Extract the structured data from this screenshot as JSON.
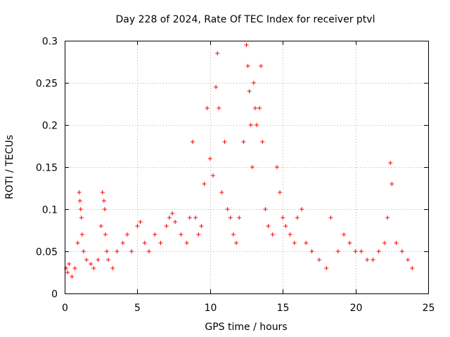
{
  "chart_data": {
    "type": "scatter",
    "title": "Day 228 of 2024, Rate Of TEC Index for receiver ptvl",
    "xlabel": "GPS time / hours",
    "ylabel": "ROTI / TECUs",
    "xlim": [
      0,
      25
    ],
    "ylim": [
      0,
      0.3
    ],
    "xticks": [
      0,
      5,
      10,
      15,
      20,
      25
    ],
    "yticks": [
      0,
      0.05,
      0.1,
      0.15,
      0.2,
      0.25,
      0.3
    ],
    "xtick_labels": [
      "0",
      "5",
      "10",
      "15",
      "20",
      "25"
    ],
    "ytick_labels": [
      "0",
      "0.05",
      "0.1",
      "0.15",
      "0.2",
      "0.25",
      "0.3"
    ],
    "grid": true,
    "marker": "plus",
    "color": "#ff0000",
    "series": [
      {
        "x": [
          0.1,
          0.2,
          0.3,
          0.5,
          0.7,
          0.9,
          1.0,
          1.05,
          1.1,
          1.15,
          1.2,
          1.3,
          1.5,
          1.8,
          2.0,
          2.3,
          2.5,
          2.6,
          2.7,
          2.75,
          2.8,
          2.9,
          3.0,
          3.3,
          3.6,
          4.0,
          4.3,
          4.6,
          5.0,
          5.2,
          5.5,
          5.8,
          6.2,
          6.6,
          7.0,
          7.2,
          7.4,
          7.6,
          8.0,
          8.4,
          8.6,
          8.8,
          9.0,
          9.2,
          9.4,
          9.6,
          9.8,
          10.0,
          10.2,
          10.4,
          10.5,
          10.6,
          10.8,
          11.0,
          11.2,
          11.4,
          11.6,
          11.8,
          12.0,
          12.3,
          12.5,
          12.6,
          12.7,
          12.8,
          12.9,
          13.0,
          13.1,
          13.2,
          13.4,
          13.5,
          13.6,
          13.8,
          14.0,
          14.3,
          14.6,
          14.8,
          15.0,
          15.2,
          15.5,
          15.8,
          16.0,
          16.3,
          16.6,
          17.0,
          17.5,
          18.0,
          18.3,
          18.8,
          19.2,
          19.6,
          20.0,
          20.4,
          20.8,
          21.2,
          21.6,
          22.0,
          22.2,
          22.4,
          22.5,
          22.8,
          23.2,
          23.6,
          23.9
        ],
        "y": [
          0.03,
          0.025,
          0.035,
          0.02,
          0.03,
          0.06,
          0.12,
          0.11,
          0.1,
          0.09,
          0.07,
          0.05,
          0.04,
          0.035,
          0.03,
          0.04,
          0.08,
          0.12,
          0.11,
          0.1,
          0.07,
          0.05,
          0.04,
          0.03,
          0.05,
          0.06,
          0.07,
          0.05,
          0.08,
          0.085,
          0.06,
          0.05,
          0.07,
          0.06,
          0.08,
          0.09,
          0.095,
          0.085,
          0.07,
          0.06,
          0.09,
          0.18,
          0.09,
          0.07,
          0.08,
          0.13,
          0.22,
          0.16,
          0.14,
          0.245,
          0.285,
          0.22,
          0.12,
          0.18,
          0.1,
          0.09,
          0.07,
          0.06,
          0.09,
          0.18,
          0.295,
          0.27,
          0.24,
          0.2,
          0.15,
          0.25,
          0.22,
          0.2,
          0.22,
          0.27,
          0.18,
          0.1,
          0.08,
          0.07,
          0.15,
          0.12,
          0.09,
          0.08,
          0.07,
          0.06,
          0.09,
          0.1,
          0.06,
          0.05,
          0.04,
          0.03,
          0.09,
          0.05,
          0.07,
          0.06,
          0.05,
          0.05,
          0.04,
          0.04,
          0.05,
          0.06,
          0.09,
          0.155,
          0.13,
          0.06,
          0.05,
          0.04,
          0.03
        ]
      }
    ]
  }
}
